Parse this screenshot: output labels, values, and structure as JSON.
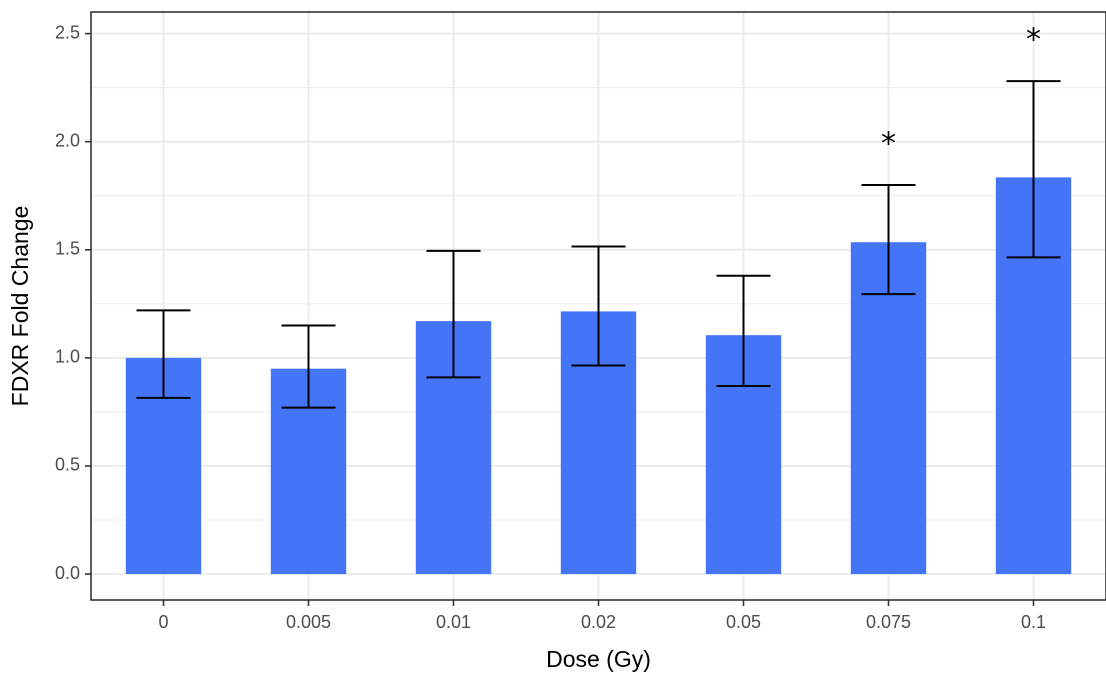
{
  "chart_data": {
    "type": "bar",
    "title": "",
    "xlabel": "Dose (Gy)",
    "ylabel": "FDXR Fold Change",
    "categories": [
      "0",
      "0.005",
      "0.01",
      "0.02",
      "0.05",
      "0.075",
      "0.1"
    ],
    "values": [
      1.0,
      0.95,
      1.17,
      1.215,
      1.105,
      1.535,
      1.835
    ],
    "error_low": [
      0.815,
      0.77,
      0.91,
      0.965,
      0.87,
      1.295,
      1.465
    ],
    "error_high": [
      1.22,
      1.15,
      1.495,
      1.515,
      1.38,
      1.8,
      2.28
    ],
    "annotations": [
      "",
      "",
      "",
      "",
      "",
      "*",
      "*"
    ],
    "ylim": [
      -0.12,
      2.6
    ],
    "yticks": [
      0.0,
      0.5,
      1.0,
      1.5,
      2.0,
      2.5
    ],
    "ytick_labels": [
      "0.0",
      "0.5",
      "1.0",
      "1.5",
      "2.0",
      "2.5"
    ],
    "grid": true,
    "legend": "none",
    "bar_color": "#4575f7",
    "grid_color": "#ebebeb"
  }
}
